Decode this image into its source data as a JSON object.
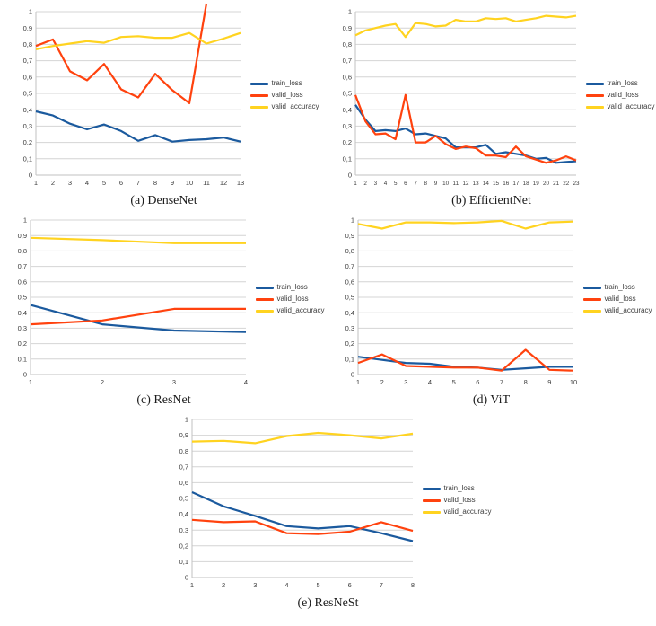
{
  "page": {
    "background": "#ffffff"
  },
  "colors": {
    "train_loss": "#1B5A9E",
    "valid_loss": "#FF420E",
    "valid_accuracy": "#FFD320",
    "grid": "#D4D4D4",
    "axis": "#C2C2C2",
    "tick_text": "#3B3B3B",
    "caption_text": "#1C1C1C"
  },
  "y_tick_labels": [
    "0",
    "0,1",
    "0,2",
    "0,3",
    "0,4",
    "0,5",
    "0,6",
    "0,7",
    "0,8",
    "0,9",
    "1"
  ],
  "chart_data": [
    {
      "id": "densenet",
      "caption": "(a) DenseNet",
      "type": "line",
      "xlabel": "",
      "ylabel": "",
      "ylim": [
        0,
        1
      ],
      "grid": true,
      "legend_position": "right",
      "x": [
        1,
        2,
        3,
        4,
        5,
        6,
        7,
        8,
        9,
        10,
        11,
        12,
        13
      ],
      "series": [
        {
          "key": "train_loss",
          "name": "train_loss",
          "values": [
            0.39,
            0.365,
            0.315,
            0.28,
            0.31,
            0.27,
            0.21,
            0.245,
            0.205,
            0.215,
            0.22,
            0.23,
            0.205
          ]
        },
        {
          "key": "valid_loss",
          "name": "valid_loss",
          "values": [
            0.79,
            0.83,
            0.635,
            0.58,
            0.68,
            0.525,
            0.475,
            0.62,
            0.52,
            0.44,
            1.05,
            null,
            null
          ]
        },
        {
          "key": "valid_accuracy",
          "name": "valid_accuracy",
          "values": [
            0.77,
            0.79,
            0.805,
            0.82,
            0.81,
            0.845,
            0.85,
            0.84,
            0.84,
            0.87,
            0.805,
            0.835,
            0.87
          ]
        }
      ]
    },
    {
      "id": "efficientnet",
      "caption": "(b) EfficientNet",
      "type": "line",
      "xlabel": "",
      "ylabel": "",
      "ylim": [
        0,
        1
      ],
      "grid": true,
      "legend_position": "right",
      "x": [
        1,
        2,
        3,
        4,
        5,
        6,
        7,
        8,
        9,
        10,
        11,
        12,
        13,
        14,
        15,
        16,
        17,
        18,
        19,
        20,
        21,
        22,
        23
      ],
      "series": [
        {
          "key": "train_loss",
          "name": "train_loss",
          "values": [
            0.43,
            0.34,
            0.27,
            0.275,
            0.27,
            0.285,
            0.25,
            0.255,
            0.24,
            0.225,
            0.17,
            0.17,
            0.17,
            0.185,
            0.13,
            0.14,
            0.13,
            0.12,
            0.1,
            0.105,
            0.075,
            0.08,
            0.085
          ]
        },
        {
          "key": "valid_loss",
          "name": "valid_loss",
          "values": [
            0.49,
            0.33,
            0.25,
            0.255,
            0.22,
            0.49,
            0.2,
            0.2,
            0.24,
            0.19,
            0.16,
            0.175,
            0.165,
            0.12,
            0.12,
            0.11,
            0.175,
            0.115,
            0.095,
            0.075,
            0.09,
            0.115,
            0.09
          ]
        },
        {
          "key": "valid_accuracy",
          "name": "valid_accuracy",
          "values": [
            0.855,
            0.885,
            0.9,
            0.915,
            0.925,
            0.845,
            0.93,
            0.925,
            0.91,
            0.915,
            0.95,
            0.94,
            0.94,
            0.96,
            0.955,
            0.96,
            0.94,
            0.95,
            0.96,
            0.975,
            0.97,
            0.965,
            0.975
          ]
        }
      ]
    },
    {
      "id": "resnet",
      "caption": "(c) ResNet",
      "type": "line",
      "xlabel": "",
      "ylabel": "",
      "ylim": [
        0,
        1
      ],
      "grid": true,
      "legend_position": "right",
      "x": [
        1,
        2,
        3,
        4
      ],
      "series": [
        {
          "key": "train_loss",
          "name": "train_loss",
          "values": [
            0.45,
            0.325,
            0.285,
            0.275
          ]
        },
        {
          "key": "valid_loss",
          "name": "valid_loss",
          "values": [
            0.325,
            0.35,
            0.425,
            0.425
          ]
        },
        {
          "key": "valid_accuracy",
          "name": "valid_accuracy",
          "values": [
            0.885,
            0.87,
            0.85,
            0.85
          ]
        }
      ]
    },
    {
      "id": "vit",
      "caption": "(d) ViT",
      "type": "line",
      "xlabel": "",
      "ylabel": "",
      "ylim": [
        0,
        1
      ],
      "grid": true,
      "legend_position": "right",
      "x": [
        1,
        2,
        3,
        4,
        5,
        6,
        7,
        8,
        9,
        10
      ],
      "series": [
        {
          "key": "train_loss",
          "name": "train_loss",
          "values": [
            0.115,
            0.095,
            0.075,
            0.07,
            0.05,
            0.045,
            0.03,
            0.04,
            0.05,
            0.05
          ]
        },
        {
          "key": "valid_loss",
          "name": "valid_loss",
          "values": [
            0.075,
            0.13,
            0.055,
            0.05,
            0.045,
            0.045,
            0.025,
            0.16,
            0.03,
            0.025
          ]
        },
        {
          "key": "valid_accuracy",
          "name": "valid_accuracy",
          "values": [
            0.975,
            0.945,
            0.985,
            0.985,
            0.98,
            0.985,
            0.995,
            0.945,
            0.985,
            0.99
          ]
        }
      ]
    },
    {
      "id": "resnest",
      "caption": "(e) ResNeSt",
      "type": "line",
      "xlabel": "",
      "ylabel": "",
      "ylim": [
        0,
        1
      ],
      "grid": true,
      "legend_position": "right",
      "x": [
        1,
        2,
        3,
        4,
        5,
        6,
        7,
        8
      ],
      "series": [
        {
          "key": "train_loss",
          "name": "train_loss",
          "values": [
            0.54,
            0.45,
            0.39,
            0.325,
            0.31,
            0.325,
            0.28,
            0.23
          ]
        },
        {
          "key": "valid_loss",
          "name": "valid_loss",
          "values": [
            0.365,
            0.35,
            0.355,
            0.28,
            0.275,
            0.29,
            0.35,
            0.295
          ]
        },
        {
          "key": "valid_accuracy",
          "name": "valid_accuracy",
          "values": [
            0.86,
            0.865,
            0.85,
            0.895,
            0.915,
            0.9,
            0.88,
            0.91
          ]
        }
      ]
    }
  ]
}
